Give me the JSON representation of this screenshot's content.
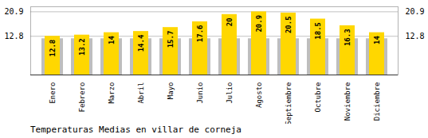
{
  "chart_data": {
    "type": "bar",
    "title": "Temperaturas Medias en villar de corneja",
    "categories": [
      "Enero",
      "Febrero",
      "Marzo",
      "Abril",
      "Mayo",
      "Junio",
      "Julio",
      "Agosto",
      "Septiembre",
      "Octubre",
      "Noviembre",
      "Diciembre"
    ],
    "series": [
      {
        "color": "#BEBEBE",
        "values": [
          12.0,
          12.0,
          12.0,
          12.0,
          12.0,
          12.0,
          12.0,
          12.0,
          12.0,
          12.0,
          12.0,
          12.0
        ]
      },
      {
        "color": "#FFD700",
        "values": [
          12.8,
          13.2,
          14.0,
          14.4,
          15.7,
          17.6,
          20.0,
          20.9,
          20.5,
          18.5,
          16.3,
          14.0
        ],
        "data_labels": true
      }
    ],
    "stacked": false,
    "ylim": [
      0,
      22.572
    ],
    "yticks": [
      12.8,
      20.9
    ],
    "grid": true
  }
}
